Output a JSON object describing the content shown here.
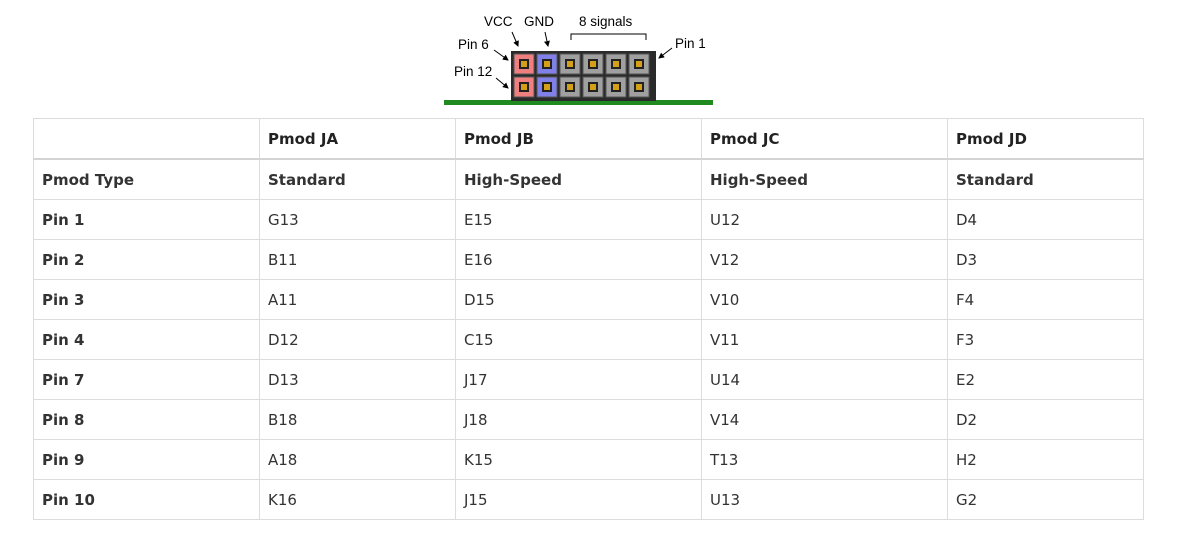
{
  "diagram": {
    "labels": {
      "vcc": "VCC",
      "gnd": "GND",
      "signals": "8 signals",
      "pin6": "Pin 6",
      "pin1": "Pin 1",
      "pin12": "Pin 12"
    },
    "colors": {
      "vcc_pin": "#f08080",
      "gnd_pin": "#8080e8",
      "signal_pin": "#a0a0a0",
      "pin_core": "#d4a017",
      "pcb": "#1f8a1f",
      "housing": "#2a2a2a"
    }
  },
  "table": {
    "headers": [
      "",
      "Pmod JA",
      "Pmod JB",
      "Pmod JC",
      "Pmod JD"
    ],
    "rows": [
      {
        "label": "Pmod Type",
        "cells": [
          "Standard",
          "High-Speed",
          "High-Speed",
          "Standard"
        ]
      },
      {
        "label": "Pin 1",
        "cells": [
          "G13",
          "E15",
          "U12",
          "D4"
        ]
      },
      {
        "label": "Pin 2",
        "cells": [
          "B11",
          "E16",
          "V12",
          "D3"
        ]
      },
      {
        "label": "Pin 3",
        "cells": [
          "A11",
          "D15",
          "V10",
          "F4"
        ]
      },
      {
        "label": "Pin 4",
        "cells": [
          "D12",
          "C15",
          "V11",
          "F3"
        ]
      },
      {
        "label": "Pin 7",
        "cells": [
          "D13",
          "J17",
          "U14",
          "E2"
        ]
      },
      {
        "label": "Pin 8",
        "cells": [
          "B18",
          "J18",
          "V14",
          "D2"
        ]
      },
      {
        "label": "Pin 9",
        "cells": [
          "A18",
          "K15",
          "T13",
          "H2"
        ]
      },
      {
        "label": "Pin 10",
        "cells": [
          "K16",
          "J15",
          "U13",
          "G2"
        ]
      }
    ]
  }
}
